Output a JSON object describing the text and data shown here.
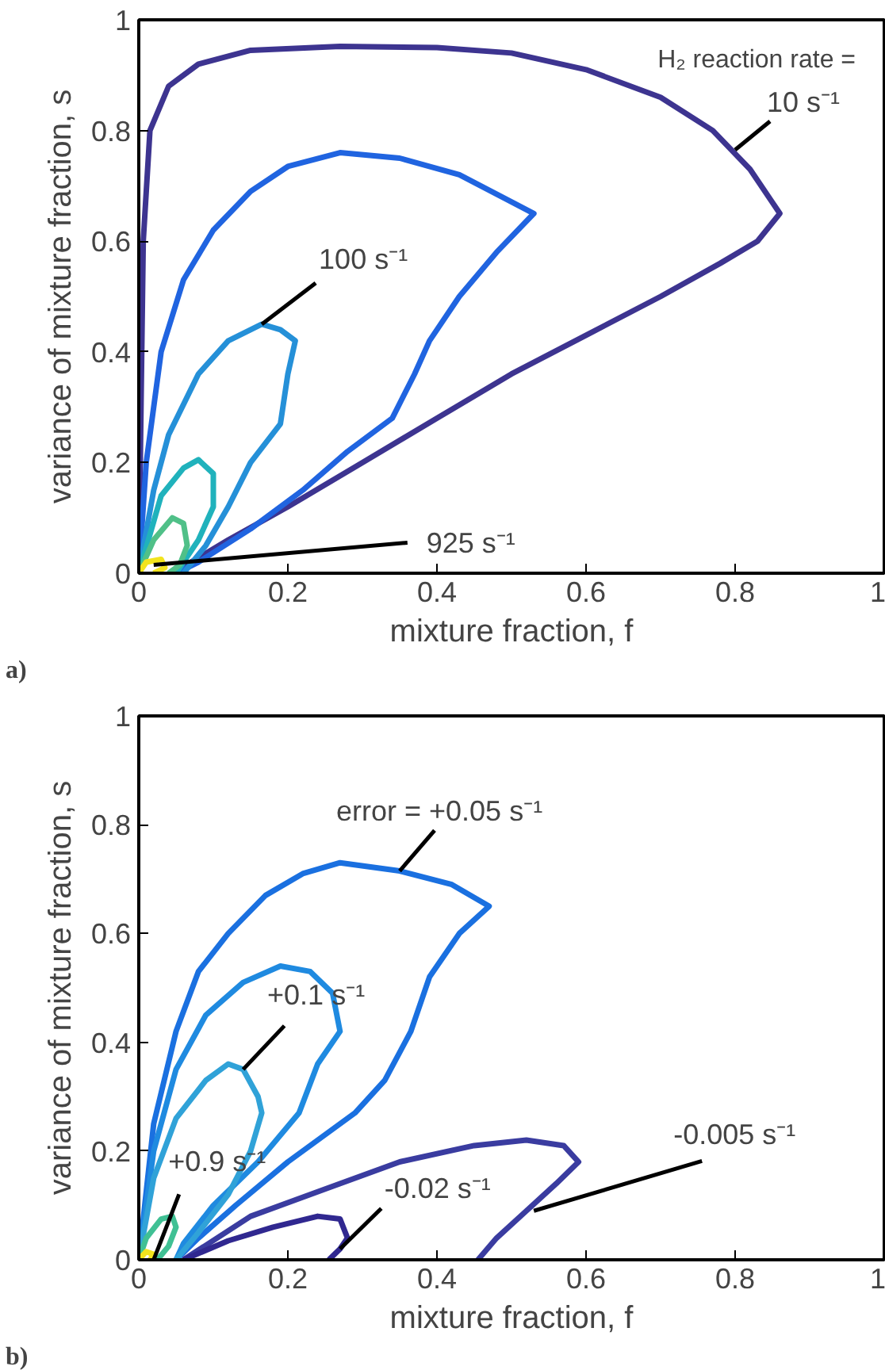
{
  "chart_data": [
    {
      "type": "line",
      "xlabel": "mixture fraction, f",
      "ylabel": "variance of mixture fraction, s",
      "xlim": [
        0,
        1
      ],
      "ylim": [
        0,
        1
      ],
      "xticks": [
        0,
        0.2,
        0.4,
        0.6,
        0.8,
        1
      ],
      "yticks": [
        0,
        0.2,
        0.4,
        0.6,
        0.8,
        1
      ],
      "series": [
        {
          "color": "#3d3490",
          "x": [
            0,
            0.003,
            0.006,
            0.015,
            0.04,
            0.08,
            0.15,
            0.27,
            0.4,
            0.5,
            0.6,
            0.7,
            0.77,
            0.82,
            0.86,
            0.83,
            0.78,
            0.7,
            0.6,
            0.5,
            0.4,
            0.3,
            0.2,
            0.12,
            0.07,
            0.05
          ],
          "values": [
            0,
            0.3,
            0.6,
            0.8,
            0.88,
            0.92,
            0.945,
            0.952,
            0.95,
            0.94,
            0.91,
            0.86,
            0.8,
            0.73,
            0.65,
            0.6,
            0.56,
            0.5,
            0.43,
            0.36,
            0.28,
            0.2,
            0.12,
            0.06,
            0.02,
            0
          ]
        },
        {
          "color": "#2064e0",
          "x": [
            0,
            0.01,
            0.03,
            0.06,
            0.1,
            0.15,
            0.2,
            0.27,
            0.35,
            0.43,
            0.53,
            0.48,
            0.43,
            0.39,
            0.37,
            0.34,
            0.28,
            0.22,
            0.15,
            0.08,
            0.05
          ],
          "values": [
            0,
            0.2,
            0.4,
            0.53,
            0.62,
            0.69,
            0.735,
            0.76,
            0.75,
            0.72,
            0.65,
            0.58,
            0.5,
            0.42,
            0.36,
            0.28,
            0.22,
            0.15,
            0.08,
            0.02,
            0
          ]
        },
        {
          "color": "#2590d8",
          "x": [
            0,
            0.02,
            0.04,
            0.08,
            0.12,
            0.165,
            0.19,
            0.21,
            0.2,
            0.19,
            0.15,
            0.12,
            0.09,
            0.06
          ],
          "values": [
            0,
            0.15,
            0.25,
            0.36,
            0.42,
            0.45,
            0.44,
            0.42,
            0.36,
            0.27,
            0.2,
            0.12,
            0.05,
            0
          ]
        },
        {
          "color": "#20b2bc",
          "x": [
            0,
            0.03,
            0.06,
            0.08,
            0.1,
            0.1,
            0.08,
            0.06,
            0.05
          ],
          "values": [
            0,
            0.14,
            0.19,
            0.205,
            0.18,
            0.12,
            0.06,
            0.02,
            0
          ]
        },
        {
          "color": "#50c088",
          "x": [
            0,
            0.02,
            0.045,
            0.06,
            0.065,
            0.055,
            0.04
          ],
          "values": [
            0,
            0.06,
            0.1,
            0.09,
            0.05,
            0.015,
            0
          ]
        },
        {
          "color": "#f2e41e",
          "x": [
            0,
            0.01,
            0.03,
            0.035,
            0.02
          ],
          "values": [
            0,
            0.02,
            0.025,
            0.01,
            0
          ]
        }
      ],
      "annotations": [
        "H₂ reaction rate =",
        {
          "text": "10 s⁻¹",
          "x": 0.8,
          "y": 0.765
        },
        {
          "text": "100 s⁻¹",
          "x": 0.165,
          "y": 0.45
        },
        {
          "text": "925 s⁻¹",
          "x": 0.02,
          "y": 0.015
        },
        "a)"
      ]
    },
    {
      "type": "line",
      "xlabel": "mixture fraction, f",
      "ylabel": "variance of mixture fraction, s",
      "xlim": [
        0,
        1
      ],
      "ylim": [
        0,
        1
      ],
      "xticks": [
        0,
        0.2,
        0.4,
        0.6,
        0.8,
        1
      ],
      "yticks": [
        0,
        0.2,
        0.4,
        0.6,
        0.8,
        1
      ],
      "series": [
        {
          "color": "#1a70e0",
          "x": [
            0,
            0.02,
            0.05,
            0.08,
            0.12,
            0.17,
            0.22,
            0.27,
            0.35,
            0.42,
            0.47,
            0.43,
            0.39,
            0.365,
            0.33,
            0.29,
            0.2,
            0.13,
            0.08,
            0.05
          ],
          "values": [
            0,
            0.25,
            0.42,
            0.53,
            0.6,
            0.67,
            0.71,
            0.73,
            0.715,
            0.69,
            0.65,
            0.6,
            0.52,
            0.42,
            0.33,
            0.27,
            0.18,
            0.1,
            0.04,
            0
          ]
        },
        {
          "color": "#1f8ae0",
          "x": [
            0,
            0.02,
            0.05,
            0.09,
            0.14,
            0.19,
            0.23,
            0.26,
            0.27,
            0.24,
            0.215,
            0.16,
            0.1,
            0.06,
            0.05
          ],
          "values": [
            0,
            0.2,
            0.35,
            0.45,
            0.51,
            0.54,
            0.53,
            0.49,
            0.42,
            0.36,
            0.27,
            0.18,
            0.1,
            0.03,
            0
          ]
        },
        {
          "color": "#30a2d8",
          "x": [
            0,
            0.02,
            0.05,
            0.09,
            0.12,
            0.14,
            0.16,
            0.165,
            0.15,
            0.12,
            0.08,
            0.05
          ],
          "values": [
            0,
            0.15,
            0.26,
            0.33,
            0.36,
            0.35,
            0.3,
            0.27,
            0.2,
            0.12,
            0.05,
            0
          ]
        },
        {
          "color": "#40c094",
          "x": [
            0,
            0.01,
            0.03,
            0.045,
            0.05,
            0.04,
            0.025
          ],
          "values": [
            0,
            0.04,
            0.075,
            0.08,
            0.06,
            0.025,
            0
          ]
        },
        {
          "color": "#f2e41e",
          "x": [
            0,
            0.01,
            0.02,
            0.015
          ],
          "values": [
            0,
            0.015,
            0.01,
            0
          ]
        },
        {
          "color": "#3a3ca0",
          "x": [
            0.06,
            0.15,
            0.25,
            0.35,
            0.45,
            0.52,
            0.57,
            0.59,
            0.56,
            0.52,
            0.48,
            0.455
          ],
          "values": [
            0,
            0.08,
            0.13,
            0.18,
            0.21,
            0.22,
            0.21,
            0.18,
            0.14,
            0.09,
            0.04,
            0
          ]
        },
        {
          "color": "#302890",
          "x": [
            0.06,
            0.12,
            0.18,
            0.24,
            0.27,
            0.28,
            0.27,
            0.255
          ],
          "values": [
            0,
            0.035,
            0.06,
            0.08,
            0.075,
            0.04,
            0.02,
            0
          ]
        }
      ],
      "annotations": [
        {
          "text": "error = +0.05 s⁻¹",
          "x": 0.35,
          "y": 0.715
        },
        {
          "text": "+0.1 s⁻¹",
          "x": 0.14,
          "y": 0.35
        },
        {
          "text": "+0.9 s⁻¹",
          "x": 0.02,
          "y": 0.0
        },
        {
          "text": "-0.02 s⁻¹",
          "x": 0.27,
          "y": 0.02
        },
        {
          "text": "-0.005 s⁻¹",
          "x": 0.53,
          "y": 0.09
        },
        "b)"
      ]
    }
  ]
}
